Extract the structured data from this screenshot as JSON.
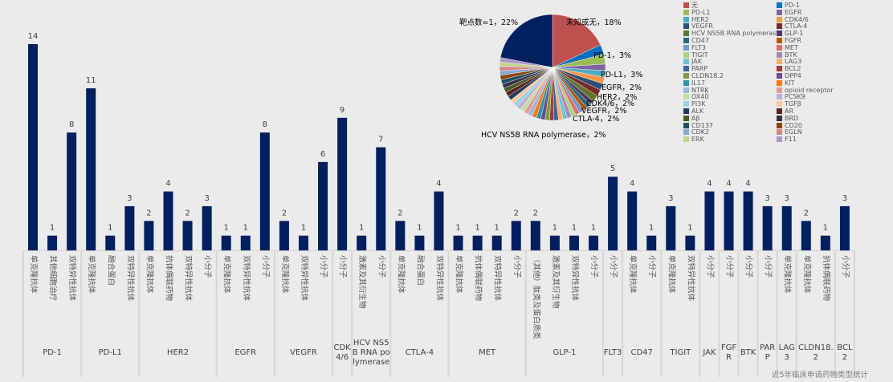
{
  "chart_data": [
    {
      "type": "bar",
      "title": "近5年临床申请药物类型统计",
      "bar_color": "#002060",
      "groups": [
        {
          "name": "PD-1",
          "categories": [
            "单克隆抗体",
            "其他细胞治疗",
            "双特异性抗体"
          ],
          "values": [
            14,
            1,
            8
          ]
        },
        {
          "name": "PD-L1",
          "categories": [
            "单克隆抗体",
            "融合蛋白",
            "双特异性抗体"
          ],
          "values": [
            11,
            1,
            3
          ]
        },
        {
          "name": "HER2",
          "categories": [
            "单克隆抗体",
            "抗体偶联药物",
            "双特异性抗体",
            "小分子"
          ],
          "values": [
            2,
            4,
            2,
            3
          ]
        },
        {
          "name": "EGFR",
          "categories": [
            "单克隆抗体",
            "双特异性抗体",
            "小分子"
          ],
          "values": [
            1,
            1,
            8
          ]
        },
        {
          "name": "VEGFR",
          "categories": [
            "单克隆抗体",
            "双特异性抗体",
            "小分子"
          ],
          "values": [
            2,
            1,
            6
          ]
        },
        {
          "name": "CDK4/6",
          "categories": [
            "小分子"
          ],
          "values": [
            9
          ]
        },
        {
          "name": "HCV NS5B RNA polymerase",
          "categories": [
            "激素及其衍生物",
            "小分子"
          ],
          "values": [
            1,
            7
          ]
        },
        {
          "name": "CTLA-4",
          "categories": [
            "单克隆抗体",
            "融合蛋白",
            "双特异性抗体"
          ],
          "values": [
            2,
            1,
            4
          ]
        },
        {
          "name": "MET",
          "categories": [
            "单克隆抗体",
            "抗体偶联药物",
            "双特异性抗体",
            "小分子"
          ],
          "values": [
            1,
            1,
            1,
            2
          ]
        },
        {
          "name": "GLP-1",
          "categories": [
            "（其他）肽类及蛋白质类",
            "激素及其衍生物",
            "双特异性抗体",
            "小分子"
          ],
          "values": [
            2,
            1,
            1,
            1
          ]
        },
        {
          "name": "FLT3",
          "categories": [
            "小分子"
          ],
          "values": [
            5
          ]
        },
        {
          "name": "CD47",
          "categories": [
            "单克隆抗体",
            "小分子"
          ],
          "values": [
            4,
            1
          ]
        },
        {
          "name": "TIGIT",
          "categories": [
            "单克隆抗体",
            "双特异性抗体"
          ],
          "values": [
            3,
            1
          ]
        },
        {
          "name": "JAK",
          "categories": [
            "小分子"
          ],
          "values": [
            4
          ]
        },
        {
          "name": "FGFR",
          "categories": [
            "小分子"
          ],
          "values": [
            4
          ]
        },
        {
          "name": "BTK",
          "categories": [
            "小分子"
          ],
          "values": [
            4
          ]
        },
        {
          "name": "PARP",
          "categories": [
            "小分子"
          ],
          "values": [
            3
          ]
        },
        {
          "name": "LAG3",
          "categories": [
            "单克隆抗体"
          ],
          "values": [
            3
          ]
        },
        {
          "name": "CLDN18.2",
          "categories": [
            "单克隆抗体",
            "抗体偶联药物"
          ],
          "values": [
            2,
            1
          ]
        },
        {
          "name": "BCL2",
          "categories": [
            "小分子"
          ],
          "values": [
            3
          ]
        }
      ],
      "ylim": [
        0,
        14
      ],
      "grid": false
    },
    {
      "type": "pie",
      "legend_placement": "right",
      "labeled_slices": [
        {
          "label": "靶点数=1，22%",
          "name": "靶点数=1",
          "value": 22,
          "color": "#002060"
        },
        {
          "label": "未知或无，18%",
          "name": "未知或无",
          "value": 18,
          "color": "#c0504d"
        },
        {
          "label": "PD-1，3%",
          "name": "PD-1",
          "value": 3,
          "color": "#0070c0"
        },
        {
          "label": "PD-L1，3%",
          "name": "PD-L1",
          "value": 3,
          "color": "#9bbb59"
        },
        {
          "label": "EGFR，2%",
          "name": "EGFR",
          "value": 2,
          "color": "#8064a2"
        },
        {
          "label": "HER2，2%",
          "name": "HER2",
          "value": 2,
          "color": "#4bacc6"
        },
        {
          "label": "CDK4/6，2%",
          "name": "CDK4/6",
          "value": 2,
          "color": "#f79646"
        },
        {
          "label": "VEGFR，2%",
          "name": "VEGFR",
          "value": 2,
          "color": "#2c4d75"
        },
        {
          "label": "CTLA-4，2%",
          "name": "CTLA-4",
          "value": 2,
          "color": "#772c2a"
        },
        {
          "label": "HCV NS5B RNA polymerase，2%",
          "name": "HCV NS5B RNA polymerase",
          "value": 2,
          "color": "#5f7530"
        }
      ],
      "legend": [
        {
          "name": "无",
          "color": "#c0504d"
        },
        {
          "name": "PD-1",
          "color": "#0070c0"
        },
        {
          "name": "PD-L1",
          "color": "#9bbb59"
        },
        {
          "name": "EGFR",
          "color": "#8064a2"
        },
        {
          "name": "HER2",
          "color": "#4bacc6"
        },
        {
          "name": "CDK4/6",
          "color": "#f79646"
        },
        {
          "name": "VEGFR",
          "color": "#2c4d75"
        },
        {
          "name": "CTLA-4",
          "color": "#772c2a"
        },
        {
          "name": "HCV NS5B RNA polymerase",
          "color": "#5f7530"
        },
        {
          "name": "GLP-1",
          "color": "#4d3b62"
        },
        {
          "name": "CD47",
          "color": "#276a7c"
        },
        {
          "name": "FGFR",
          "color": "#b65708"
        },
        {
          "name": "FLT3",
          "color": "#729aca"
        },
        {
          "name": "MET",
          "color": "#d9706d"
        },
        {
          "name": "TIGIT",
          "color": "#b1d07b"
        },
        {
          "name": "BTK",
          "color": "#a18bbd"
        },
        {
          "name": "JAK",
          "color": "#70c0d6"
        },
        {
          "name": "LAG3",
          "color": "#f9ad6f"
        },
        {
          "name": "PARP",
          "color": "#3a64a0"
        },
        {
          "name": "BCL2",
          "color": "#a23b38"
        },
        {
          "name": "CLDN18.2",
          "color": "#7e9b40"
        },
        {
          "name": "DPP4",
          "color": "#6a4f8a"
        },
        {
          "name": "IL17",
          "color": "#3590a8"
        },
        {
          "name": "KIT",
          "color": "#f57a12"
        },
        {
          "name": "NTRK",
          "color": "#9db6dc"
        },
        {
          "name": "opioid receptor",
          "color": "#e09d9b"
        },
        {
          "name": "OX40",
          "color": "#c7dca4"
        },
        {
          "name": "PCSK9",
          "color": "#bfb0d4"
        },
        {
          "name": "PI3K",
          "color": "#9dd2e0"
        },
        {
          "name": "TGFβ",
          "color": "#fbc69c"
        },
        {
          "name": "ALK",
          "color": "#223a5a"
        },
        {
          "name": "AR",
          "color": "#5c2220"
        },
        {
          "name": "Aβ",
          "color": "#495a24"
        },
        {
          "name": "BRD",
          "color": "#3b2d4b"
        },
        {
          "name": "CD137",
          "color": "#1e505e"
        },
        {
          "name": "CD20",
          "color": "#8c4306"
        },
        {
          "name": "CDK2",
          "color": "#87a9d3"
        },
        {
          "name": "EGLN",
          "color": "#d88482"
        },
        {
          "name": "ERK",
          "color": "#bcd68e"
        },
        {
          "name": "F11",
          "color": "#ab97c6"
        }
      ]
    }
  ]
}
